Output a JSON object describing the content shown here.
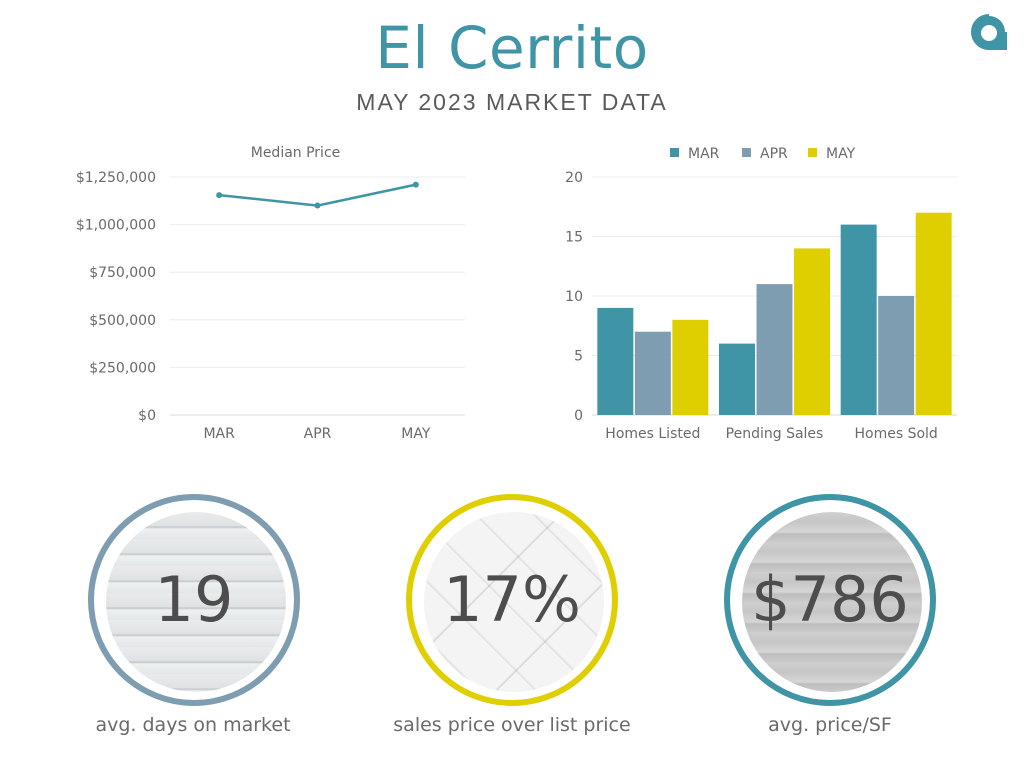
{
  "header": {
    "title": "El Cerrito",
    "subtitle": "MAY 2023 MARKET DATA",
    "logo_icon": "brand-a-icon"
  },
  "colors": {
    "teal": "#3f95a6",
    "slate": "#7f9db0",
    "yellow": "#dfcf00",
    "text": "#6a6a6a"
  },
  "chart_data": [
    {
      "type": "line",
      "title": "Median Price",
      "categories": [
        "MAR",
        "APR",
        "MAY"
      ],
      "series": [
        {
          "values": [
            1155000,
            1100000,
            1210000
          ]
        }
      ],
      "ylim": [
        0,
        1250000
      ],
      "yticks": [
        0,
        250000,
        500000,
        750000,
        1000000,
        1250000
      ],
      "ytick_labels": [
        "$0",
        "$250,000",
        "$500,000",
        "$750,000",
        "$1,000,000",
        "$1,250,000"
      ],
      "grid": true
    },
    {
      "type": "bar",
      "categories": [
        "Homes Listed",
        "Pending Sales",
        "Homes Sold"
      ],
      "series": [
        {
          "name": "MAR",
          "values": [
            9,
            6,
            16
          ]
        },
        {
          "name": "APR",
          "values": [
            7,
            11,
            10
          ]
        },
        {
          "name": "MAY",
          "values": [
            8,
            14,
            17
          ]
        }
      ],
      "ylim": [
        0,
        20
      ],
      "yticks": [
        0,
        5,
        10,
        15,
        20
      ],
      "ytick_labels": [
        "0",
        "5",
        "10",
        "15",
        "20"
      ],
      "legend_position": "top",
      "grid": true
    }
  ],
  "stats": [
    {
      "value": "19",
      "label": "avg. days on market",
      "ring_color": "#7f9db0",
      "texture": "siding-texture-icon"
    },
    {
      "value": "17%",
      "label": "sales price over list price",
      "ring_color": "#dfcf00",
      "texture": "white-brick-texture-icon"
    },
    {
      "value": "$786",
      "label": "avg. price/SF",
      "ring_color": "#3f95a6",
      "texture": "wood-plank-texture-icon"
    }
  ]
}
